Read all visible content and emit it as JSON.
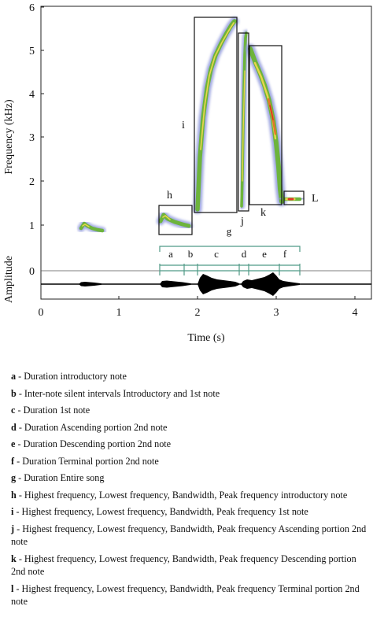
{
  "figure": {
    "y_axis_label": "Frequency (kHz)",
    "amp_axis_label": "Amplitude",
    "x_axis_label": "Time (s)",
    "y_ticks": [
      "6",
      "5",
      "4",
      "3",
      "2",
      "1"
    ],
    "amp_tick": "0",
    "x_ticks": [
      "0",
      "1",
      "2",
      "3",
      "4"
    ],
    "x_range_s": [
      0,
      4.25
    ],
    "y_range_khz": [
      0,
      6
    ],
    "measure_labels": {
      "h": "h",
      "i": "i",
      "j": "j",
      "k": "k",
      "L": "L",
      "g": "g",
      "a": "a",
      "b": "b",
      "c": "c",
      "d": "d",
      "e": "e",
      "f": "f"
    },
    "colors": {
      "spectrogram_low": "#7b87d4",
      "spectrogram_mid": "#7cc043",
      "spectrogram_high": "#e23d1f",
      "box": "#111111",
      "bracket": "#4f9a86",
      "waveform": "#000000"
    }
  },
  "legend": [
    {
      "key": "a",
      "text": " - Duration introductory note"
    },
    {
      "key": "b",
      "text": " - Inter-note silent intervals Introductory and 1st note"
    },
    {
      "key": "c",
      "text": " - Duration 1st note"
    },
    {
      "key": "d",
      "text": " - Duration Ascending portion 2nd note"
    },
    {
      "key": "e",
      "text": " - Duration Descending portion 2nd note"
    },
    {
      "key": "f",
      "text": " - Duration Terminal portion 2nd note"
    },
    {
      "key": "g",
      "text": " - Duration Entire song"
    },
    {
      "key": "h",
      "text": " - Highest frequency, Lowest frequency, Bandwidth, Peak frequency introductory note"
    },
    {
      "key": "i",
      "text": " - Highest frequency, Lowest frequency, Bandwidth, Peak frequency 1st note"
    },
    {
      "key": "j",
      "text": " - Highest frequency, Lowest frequency, Bandwidth, Peak frequency Ascending portion 2nd note"
    },
    {
      "key": "k",
      "text": " - Highest frequency, Lowest frequency, Bandwidth, Peak frequency Descending portion 2nd note"
    },
    {
      "key": "l",
      "text": " - Highest frequency, Lowest frequency, Bandwidth, Peak frequency Terminal portion 2nd note"
    }
  ]
}
